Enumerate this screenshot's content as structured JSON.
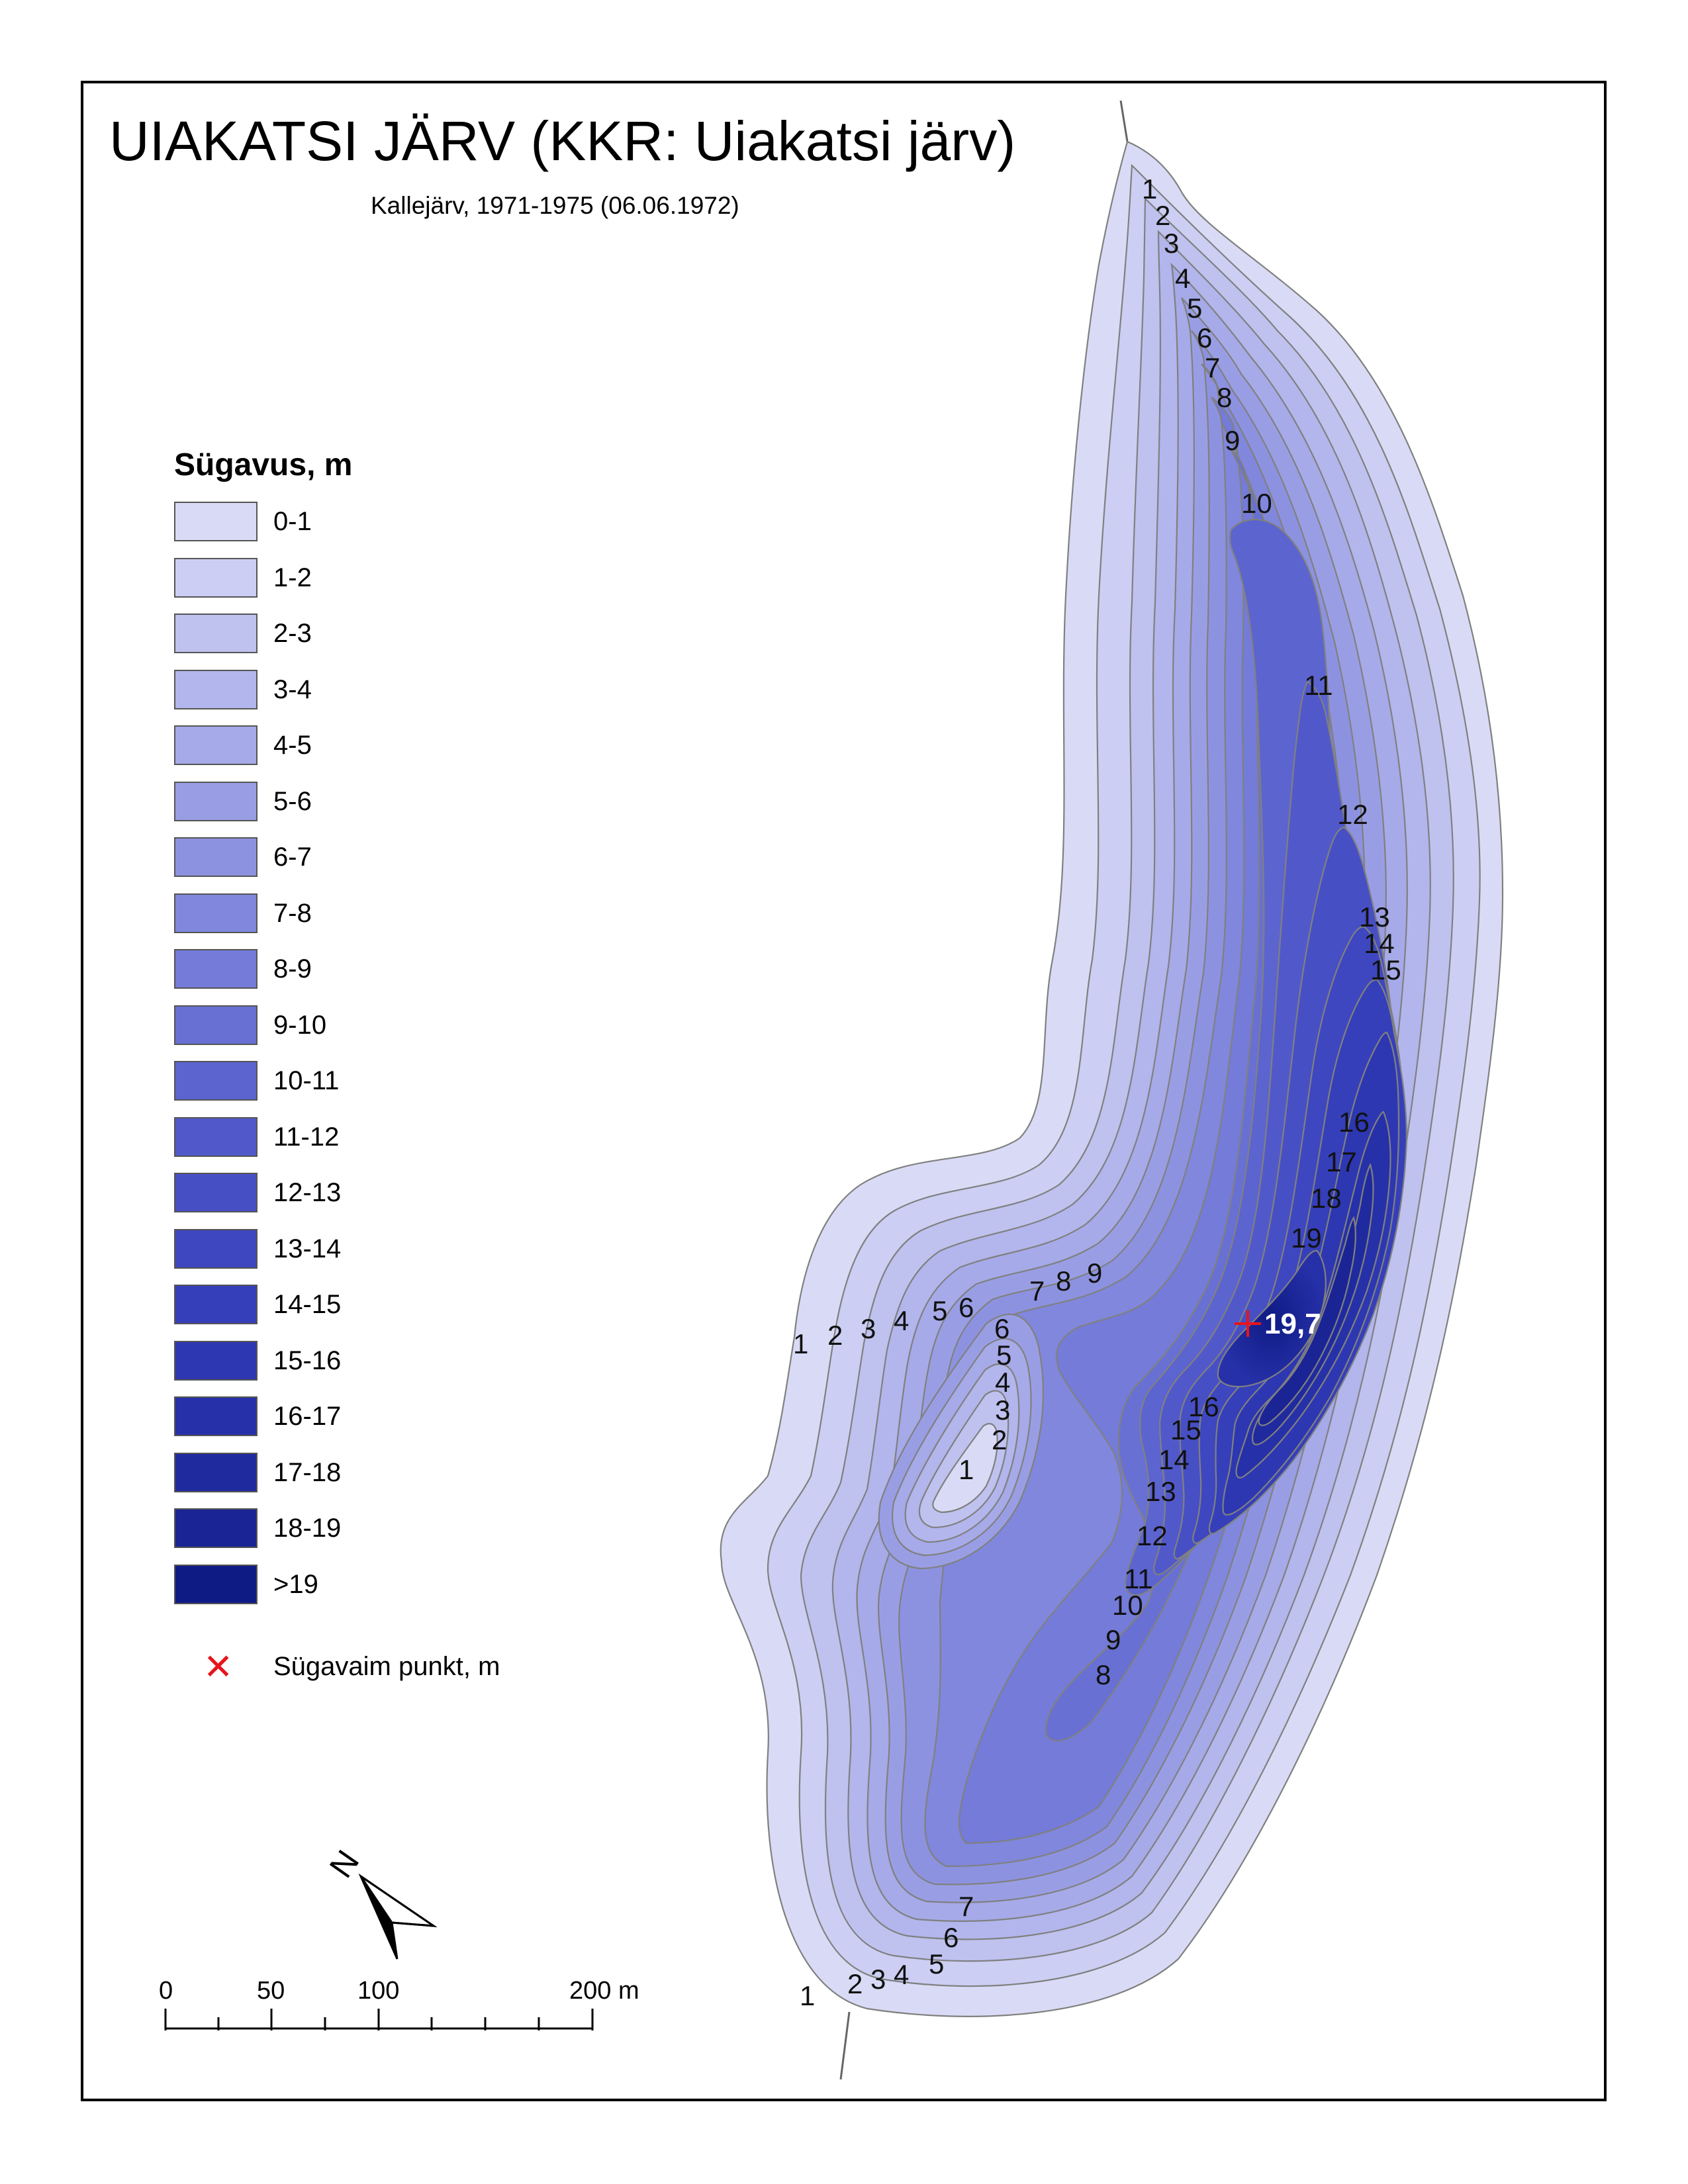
{
  "title": "UIAKATSI JÄRV (KKR: Uiakatsi järv)",
  "subtitle": "Kallejärv, 1971-1975 (06.06.1972)",
  "legend": {
    "title": "Sügavus, m",
    "classes": [
      {
        "label": "0-1",
        "color": "#d9dbf6"
      },
      {
        "label": "1-2",
        "color": "#cccff3"
      },
      {
        "label": "2-3",
        "color": "#bfc2ef"
      },
      {
        "label": "3-4",
        "color": "#b2b6ec"
      },
      {
        "label": "4-5",
        "color": "#a6aae8"
      },
      {
        "label": "5-6",
        "color": "#999ee4"
      },
      {
        "label": "6-7",
        "color": "#8d92e0"
      },
      {
        "label": "7-8",
        "color": "#8087dc"
      },
      {
        "label": "8-9",
        "color": "#747bd8"
      },
      {
        "label": "9-10",
        "color": "#6870d4"
      },
      {
        "label": "10-11",
        "color": "#5c64cf"
      },
      {
        "label": "11-12",
        "color": "#5159ca"
      },
      {
        "label": "12-13",
        "color": "#474fc5"
      },
      {
        "label": "13-14",
        "color": "#3e47bf"
      },
      {
        "label": "14-15",
        "color": "#353fb9"
      },
      {
        "label": "15-16",
        "color": "#2d37b1"
      },
      {
        "label": "16-17",
        "color": "#2630a8"
      },
      {
        "label": "17-18",
        "color": "#202a9f"
      },
      {
        "label": "18-19",
        "color": "#1a2495"
      },
      {
        "label": ">19",
        "color": "#0f1b85"
      }
    ],
    "deepest_point_label": "Sügavaim punkt, m",
    "deepest_point_color": "#e8141b"
  },
  "deepest_point_value": "19,7",
  "north_label": "N",
  "scale_bar": {
    "labels": [
      "0",
      "50",
      "100",
      "200 m"
    ]
  },
  "contour_labels": {
    "north_top": [
      "1",
      "2",
      "3",
      "4",
      "5",
      "6",
      "7",
      "8",
      "9",
      "10",
      "11",
      "12",
      "13",
      "14",
      "15"
    ],
    "middle": [
      "16",
      "17",
      "18",
      "19"
    ],
    "west_row": [
      "1",
      "2",
      "3",
      "4",
      "5",
      "6",
      "7",
      "8",
      "9"
    ],
    "island": [
      "6",
      "5",
      "4",
      "3",
      "2",
      "1"
    ],
    "south_slope": [
      "16",
      "15",
      "14",
      "13",
      "12",
      "11",
      "10",
      "9",
      "8"
    ],
    "south_bottom": [
      "7",
      "6",
      "5",
      "4",
      "3",
      "2",
      "1"
    ]
  }
}
